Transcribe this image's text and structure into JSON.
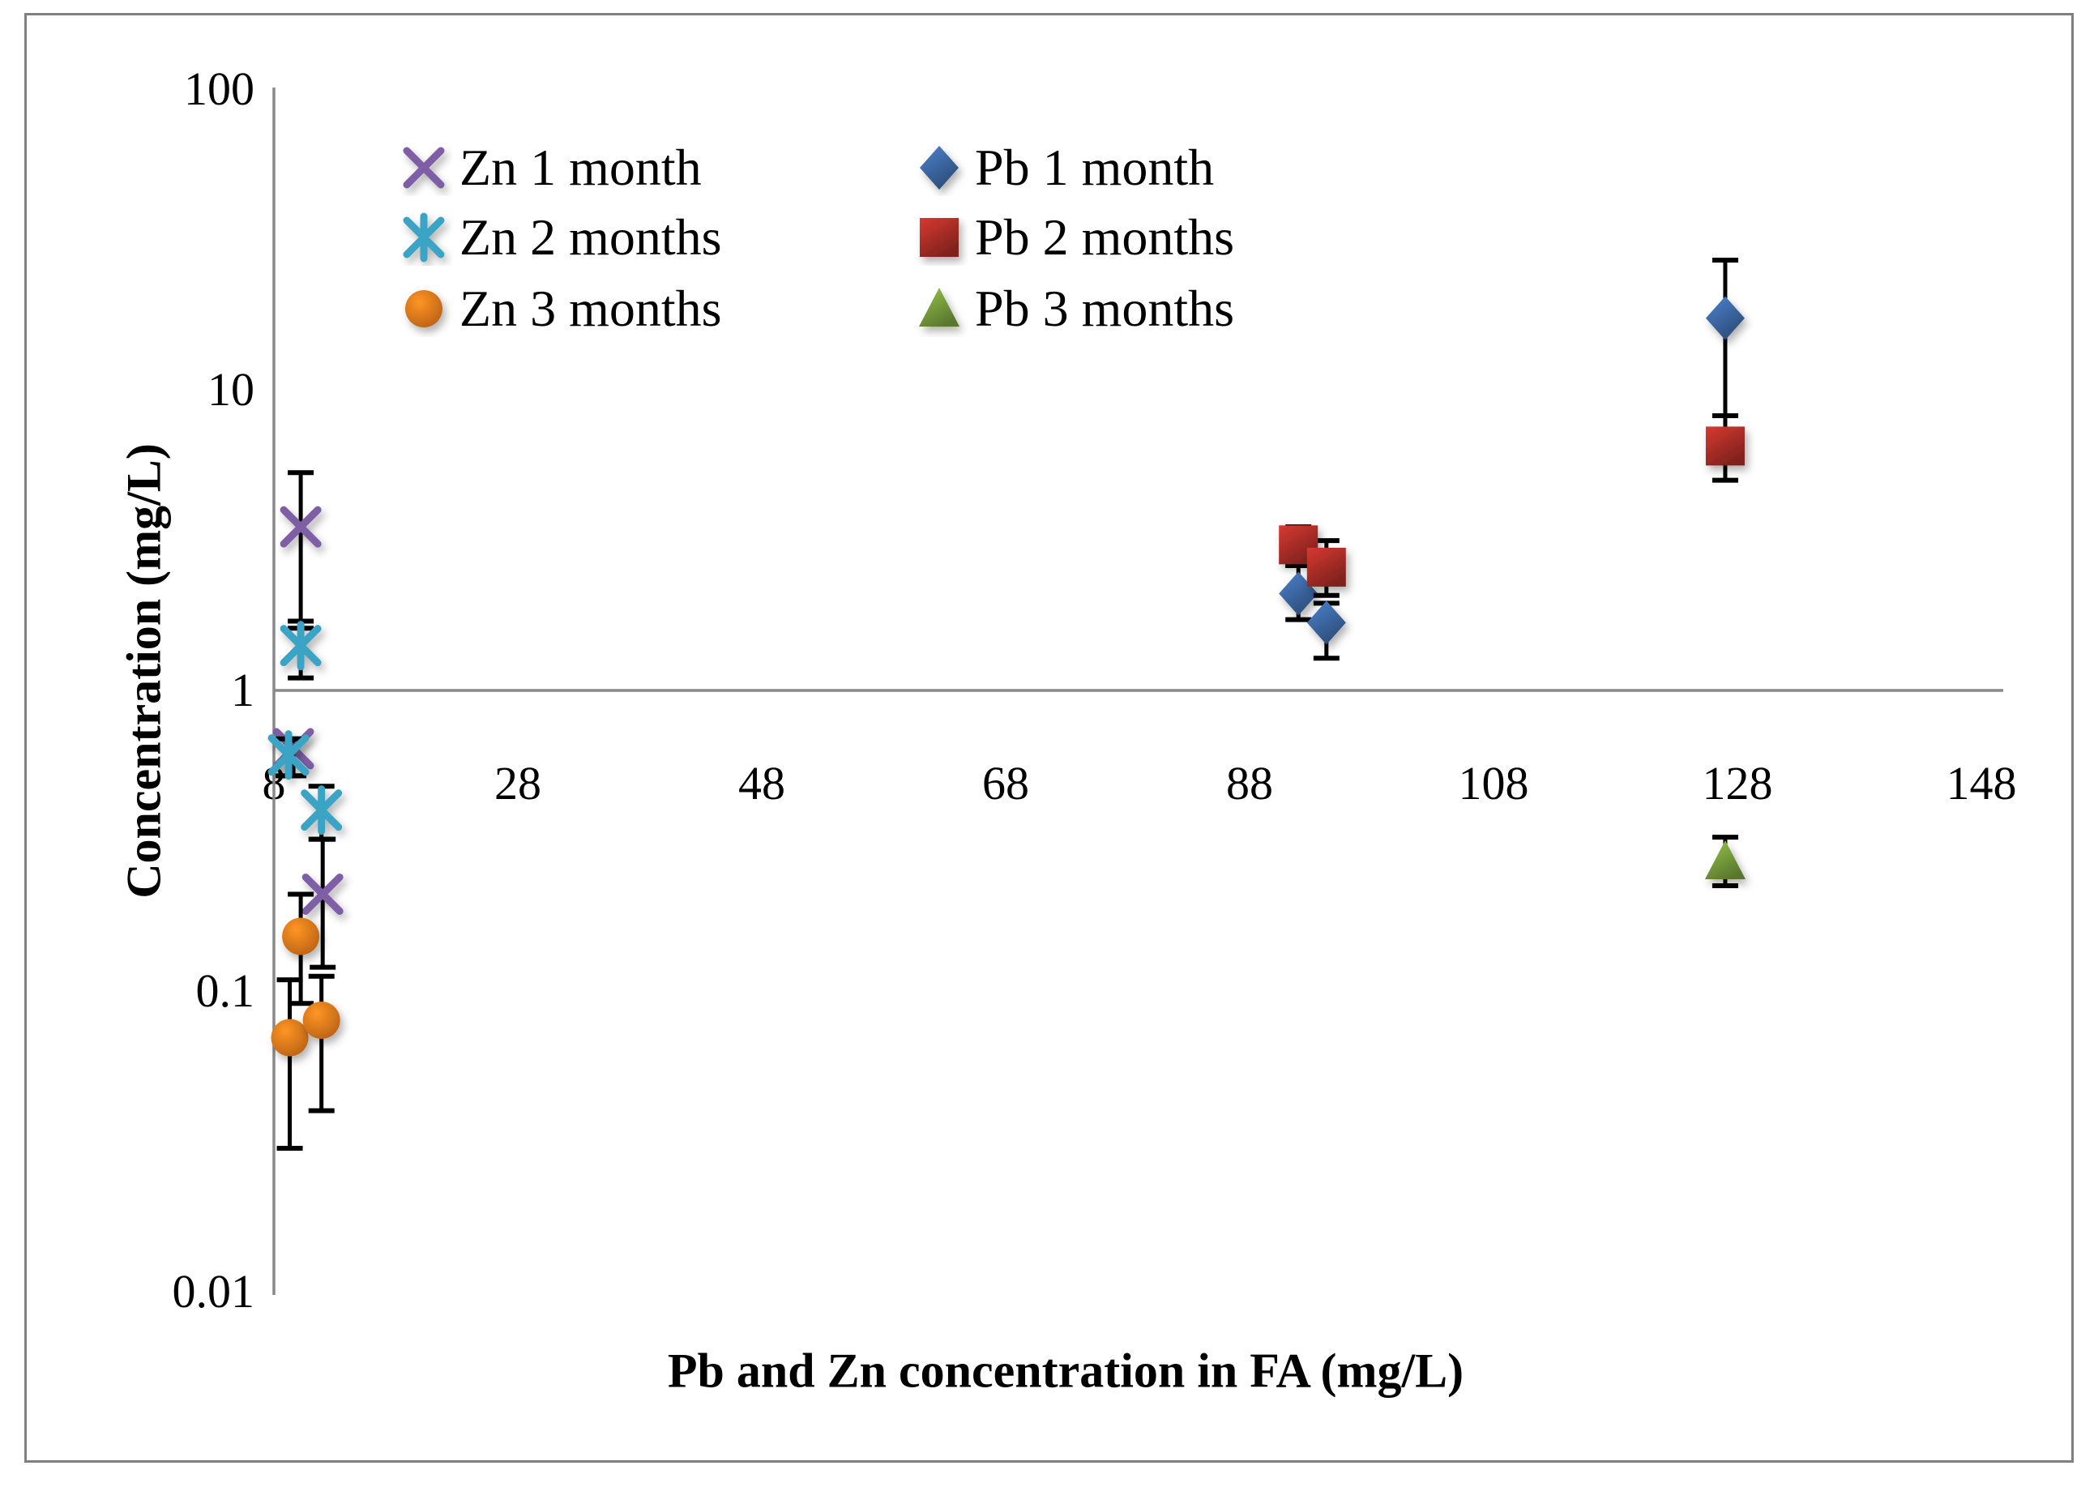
{
  "page": {
    "background": "#ffffff",
    "border_color": "#7f7f7f"
  },
  "chart": {
    "y_axis_title": "Concentration (mg/L)",
    "x_axis_title": "Pb and Zn concentration in FA (mg/L)"
  },
  "chart_data": {
    "type": "scatter",
    "x_scale": "linear",
    "y_scale": "log",
    "xlabel": "Pb and Zn concentration in FA (mg/L)",
    "ylabel": "Concentration (mg/L)",
    "xlim": [
      8,
      148
    ],
    "ylim": [
      0.01,
      100
    ],
    "x_ticks": [
      8,
      28,
      48,
      68,
      88,
      108,
      128,
      148
    ],
    "y_ticks": [
      100,
      10,
      1,
      0.1,
      0.01
    ],
    "grid": false,
    "legend_position": "top-inside, two columns",
    "axis_color": "#898989",
    "error_bar_color": "#000000",
    "series": [
      {
        "name": "Zn 1 month",
        "marker": "x",
        "color": "#7e5fa6",
        "points": [
          {
            "x": 10.2,
            "y": 3.5,
            "lo": 1.7,
            "hi": 5.3
          },
          {
            "x": 9.6,
            "y": 0.64,
            "lo": 0.52,
            "hi": 0.69
          },
          {
            "x": 12.0,
            "y": 0.21,
            "lo": 0.12,
            "hi": 0.32
          }
        ]
      },
      {
        "name": "Zn 2 months",
        "marker": "asterisk",
        "color": "#3ba4c4",
        "points": [
          {
            "x": 10.2,
            "y": 1.41,
            "lo": 1.1,
            "hi": 1.61
          },
          {
            "x": 9.2,
            "y": 0.61,
            "lo": 0.52,
            "hi": 0.69
          },
          {
            "x": 11.9,
            "y": 0.4,
            "lo": 0.32,
            "hi": 0.48
          }
        ]
      },
      {
        "name": "Zn 3 months",
        "marker": "circle",
        "color": "#e4771c",
        "points": [
          {
            "x": 10.2,
            "y": 0.152,
            "lo": 0.091,
            "hi": 0.21
          },
          {
            "x": 9.3,
            "y": 0.07,
            "lo": 0.03,
            "hi": 0.109
          },
          {
            "x": 11.9,
            "y": 0.08,
            "lo": 0.04,
            "hi": 0.112
          }
        ]
      },
      {
        "name": "Pb 1 month",
        "marker": "diamond",
        "color": "#3e6baa",
        "points": [
          {
            "x": 92.0,
            "y": 2.1,
            "lo": 1.72,
            "hi": 2.6
          },
          {
            "x": 94.3,
            "y": 1.68,
            "lo": 1.28,
            "hi": 1.95
          },
          {
            "x": 127.0,
            "y": 17.3,
            "lo": 8.2,
            "hi": 27.0
          }
        ]
      },
      {
        "name": "Pb 2 months",
        "marker": "square",
        "color": "#b02f28",
        "points": [
          {
            "x": 92.0,
            "y": 3.05,
            "lo": 2.6,
            "hi": 3.5
          },
          {
            "x": 94.3,
            "y": 2.57,
            "lo": 2.07,
            "hi": 3.15
          },
          {
            "x": 127.0,
            "y": 6.5,
            "lo": 5.0,
            "hi": 8.2
          }
        ]
      },
      {
        "name": "Pb 3 months",
        "marker": "triangle",
        "color": "#7ba43f",
        "points": [
          {
            "x": 127.0,
            "y": 0.27,
            "lo": 0.224,
            "hi": 0.325
          }
        ]
      }
    ]
  }
}
